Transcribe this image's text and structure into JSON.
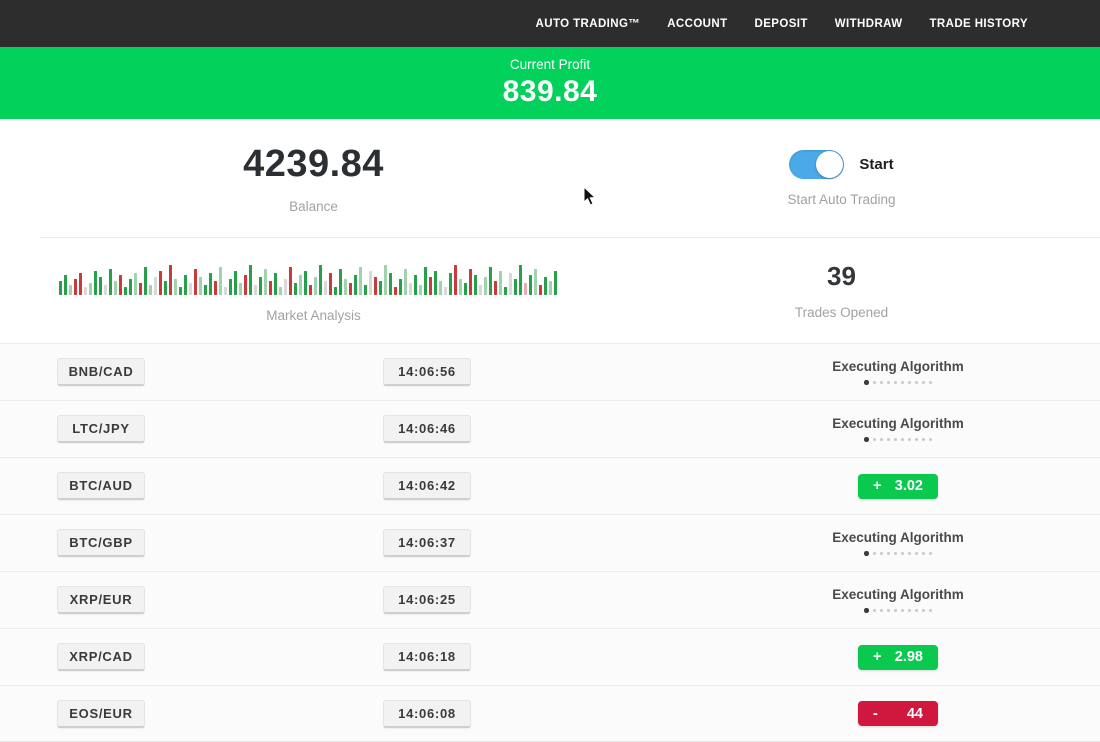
{
  "navbar": {
    "items": [
      "AUTO TRADING™",
      "ACCOUNT",
      "DEPOSIT",
      "WITHDRAW",
      "TRADE HISTORY"
    ]
  },
  "banner": {
    "label": "Current Profit",
    "value": "839.84"
  },
  "summary": {
    "balance": {
      "value": "4239.84",
      "label": "Balance"
    },
    "auto_trading": {
      "toggle_label": "Start",
      "caption": "Start Auto Trading",
      "toggle_on": true
    },
    "market_analysis": {
      "label": "Market Analysis"
    },
    "trades_opened": {
      "value": "39",
      "label": "Trades Opened"
    }
  },
  "chart_data": {
    "type": "bar",
    "title": "Market Analysis",
    "colors": {
      "g": "#27a04a",
      "G": "#9fd3ab",
      "r": "#c93a3a",
      "R": "#e2aeb2",
      "x": "#d8d8d8"
    },
    "bars": [
      [
        14,
        "g"
      ],
      [
        20,
        "g"
      ],
      [
        10,
        "G"
      ],
      [
        16,
        "r"
      ],
      [
        22,
        "r"
      ],
      [
        8,
        "x"
      ],
      [
        12,
        "G"
      ],
      [
        24,
        "g"
      ],
      [
        18,
        "g"
      ],
      [
        10,
        "x"
      ],
      [
        26,
        "g"
      ],
      [
        14,
        "G"
      ],
      [
        20,
        "r"
      ],
      [
        8,
        "g"
      ],
      [
        16,
        "g"
      ],
      [
        22,
        "G"
      ],
      [
        12,
        "r"
      ],
      [
        28,
        "g"
      ],
      [
        10,
        "G"
      ],
      [
        18,
        "x"
      ],
      [
        24,
        "r"
      ],
      [
        14,
        "g"
      ],
      [
        30,
        "r"
      ],
      [
        16,
        "G"
      ],
      [
        8,
        "g"
      ],
      [
        20,
        "g"
      ],
      [
        12,
        "x"
      ],
      [
        26,
        "r"
      ],
      [
        18,
        "G"
      ],
      [
        10,
        "g"
      ],
      [
        22,
        "g"
      ],
      [
        14,
        "r"
      ],
      [
        28,
        "G"
      ],
      [
        8,
        "x"
      ],
      [
        16,
        "g"
      ],
      [
        24,
        "g"
      ],
      [
        12,
        "G"
      ],
      [
        20,
        "r"
      ],
      [
        30,
        "g"
      ],
      [
        10,
        "x"
      ],
      [
        18,
        "g"
      ],
      [
        26,
        "G"
      ],
      [
        14,
        "r"
      ],
      [
        22,
        "g"
      ],
      [
        8,
        "G"
      ],
      [
        16,
        "x"
      ],
      [
        28,
        "r"
      ],
      [
        12,
        "g"
      ],
      [
        20,
        "G"
      ],
      [
        24,
        "g"
      ],
      [
        10,
        "r"
      ],
      [
        18,
        "G"
      ],
      [
        30,
        "g"
      ],
      [
        14,
        "x"
      ],
      [
        22,
        "r"
      ],
      [
        8,
        "g"
      ],
      [
        26,
        "g"
      ],
      [
        16,
        "G"
      ],
      [
        12,
        "r"
      ],
      [
        20,
        "g"
      ],
      [
        28,
        "G"
      ],
      [
        10,
        "g"
      ],
      [
        24,
        "x"
      ],
      [
        18,
        "r"
      ],
      [
        14,
        "g"
      ],
      [
        30,
        "G"
      ],
      [
        22,
        "g"
      ],
      [
        8,
        "r"
      ],
      [
        16,
        "g"
      ],
      [
        26,
        "G"
      ],
      [
        12,
        "x"
      ],
      [
        20,
        "g"
      ],
      [
        10,
        "G"
      ],
      [
        28,
        "g"
      ],
      [
        18,
        "r"
      ],
      [
        24,
        "g"
      ],
      [
        14,
        "G"
      ],
      [
        8,
        "x"
      ],
      [
        22,
        "g"
      ],
      [
        30,
        "r"
      ],
      [
        16,
        "G"
      ],
      [
        12,
        "g"
      ],
      [
        26,
        "r"
      ],
      [
        20,
        "g"
      ],
      [
        10,
        "x"
      ],
      [
        18,
        "G"
      ],
      [
        28,
        "g"
      ],
      [
        14,
        "r"
      ],
      [
        24,
        "G"
      ],
      [
        8,
        "g"
      ],
      [
        22,
        "x"
      ],
      [
        16,
        "g"
      ],
      [
        30,
        "g"
      ],
      [
        12,
        "R"
      ],
      [
        20,
        "g"
      ],
      [
        26,
        "G"
      ],
      [
        10,
        "r"
      ],
      [
        18,
        "g"
      ],
      [
        14,
        "G"
      ],
      [
        24,
        "g"
      ]
    ]
  },
  "trades": [
    {
      "pair": "BNB/CAD",
      "time": "14:06:56",
      "status": {
        "type": "executing",
        "label": "Executing Algorithm"
      }
    },
    {
      "pair": "LTC/JPY",
      "time": "14:06:46",
      "status": {
        "type": "executing",
        "label": "Executing Algorithm"
      }
    },
    {
      "pair": "BTC/AUD",
      "time": "14:06:42",
      "status": {
        "type": "profit",
        "sign": "+",
        "value": "3.02"
      }
    },
    {
      "pair": "BTC/GBP",
      "time": "14:06:37",
      "status": {
        "type": "executing",
        "label": "Executing Algorithm"
      }
    },
    {
      "pair": "XRP/EUR",
      "time": "14:06:25",
      "status": {
        "type": "executing",
        "label": "Executing Algorithm"
      }
    },
    {
      "pair": "XRP/CAD",
      "time": "14:06:18",
      "status": {
        "type": "profit",
        "sign": "+",
        "value": "2.98"
      }
    },
    {
      "pair": "EOS/EUR",
      "time": "14:06:08",
      "status": {
        "type": "loss",
        "sign": "-",
        "value": "44"
      }
    }
  ],
  "ui": {
    "executing_dots_count": 10,
    "executing_dots_active_index": 0
  },
  "colors": {
    "navbar_bg": "#2d2d2d",
    "banner_green": "#02d15b",
    "profit_green": "#0bc84f",
    "loss_red": "#d0183f",
    "toggle_blue": "#4aa9e6"
  }
}
